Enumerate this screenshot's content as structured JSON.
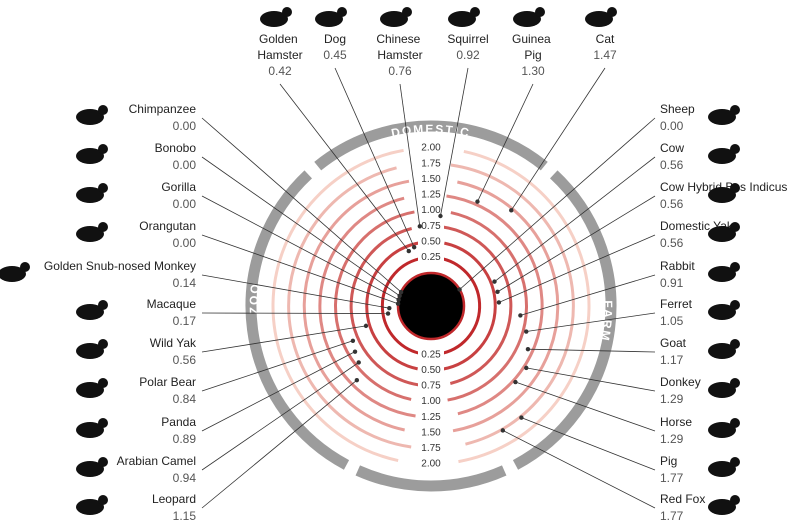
{
  "chart_data": {
    "type": "radial",
    "rlim": [
      0,
      2
    ],
    "rticks": [
      0.25,
      {
        "value": 0.5,
        "label": "0.50"
      },
      0.75,
      {
        "value": 1,
        "label": "1.00"
      },
      1.25,
      {
        "value": 1.5,
        "label": "1.50"
      },
      1.75,
      {
        "value": 2,
        "label": "2.00"
      }
    ],
    "series": [
      {
        "name": "DOMESTIC",
        "categories": [
          "Golden Hamster",
          "Dog",
          "Chinese Hamster",
          "Squirrel",
          "Guinea Pig",
          "Cat"
        ],
        "values": [
          0.42,
          0.45,
          0.76,
          0.92,
          1.3,
          1.47
        ],
        "value_labels": [
          "0.42",
          "0.45",
          "0.76",
          "0.92",
          "1.30",
          "1.47"
        ]
      },
      {
        "name": "FARM",
        "categories": [
          "Sheep",
          "Cow",
          "Cow Hybrid Bos Indicus",
          "Domestic Yak",
          "Rabbit",
          "Ferret",
          "Goat",
          "Donkey",
          "Horse",
          "Pig",
          "Red Fox"
        ],
        "values": [
          0,
          0.56,
          0.56,
          0.56,
          0.91,
          1.05,
          1.17,
          1.29,
          1.29,
          1.77,
          1.77
        ],
        "value_labels": [
          "0.00",
          "0.56",
          "0.56",
          "0.56",
          "0.91",
          "1.05",
          "1.17",
          "1.29",
          "1.29",
          "1.77",
          "1.77"
        ]
      },
      {
        "name": "ZOO",
        "categories": [
          "Chimpanzee",
          "Bonobo",
          "Gorilla",
          "Orangutan",
          "Golden Snub-nosed Monkey",
          "Macaque",
          "Wild Yak",
          "Polar Bear",
          "Panda",
          "Arabian Camel",
          "Leopard"
        ],
        "values": [
          0,
          0,
          0,
          0,
          0.14,
          0.17,
          0.56,
          0.84,
          0.89,
          0.94,
          1.15
        ],
        "value_labels": [
          "0.00",
          "0.00",
          "0.00",
          "0.00",
          "0.14",
          "0.17",
          "0.56",
          "0.84",
          "0.89",
          "0.94",
          "1.15"
        ]
      }
    ]
  }
}
